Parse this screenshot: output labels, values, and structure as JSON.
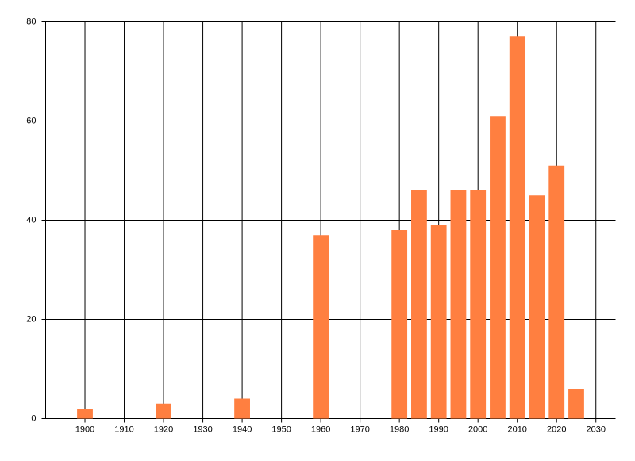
{
  "chart_data": {
    "type": "bar",
    "x": [
      1900,
      1920,
      1940,
      1960,
      1980,
      1985,
      1990,
      1995,
      2000,
      2005,
      2010,
      2015,
      2020,
      2025
    ],
    "values": [
      2,
      3,
      4,
      37,
      38,
      46,
      39,
      46,
      46,
      61,
      77,
      45,
      51,
      6
    ],
    "color": "#ff7f40",
    "xlim": [
      1890,
      2035
    ],
    "xticks": [
      1900,
      1910,
      1920,
      1930,
      1940,
      1950,
      1960,
      1970,
      1980,
      1990,
      2000,
      2010,
      2020,
      2030
    ],
    "ylim": [
      0,
      80
    ],
    "yticks": [
      0,
      20,
      40,
      60,
      80
    ],
    "grid": true
  }
}
